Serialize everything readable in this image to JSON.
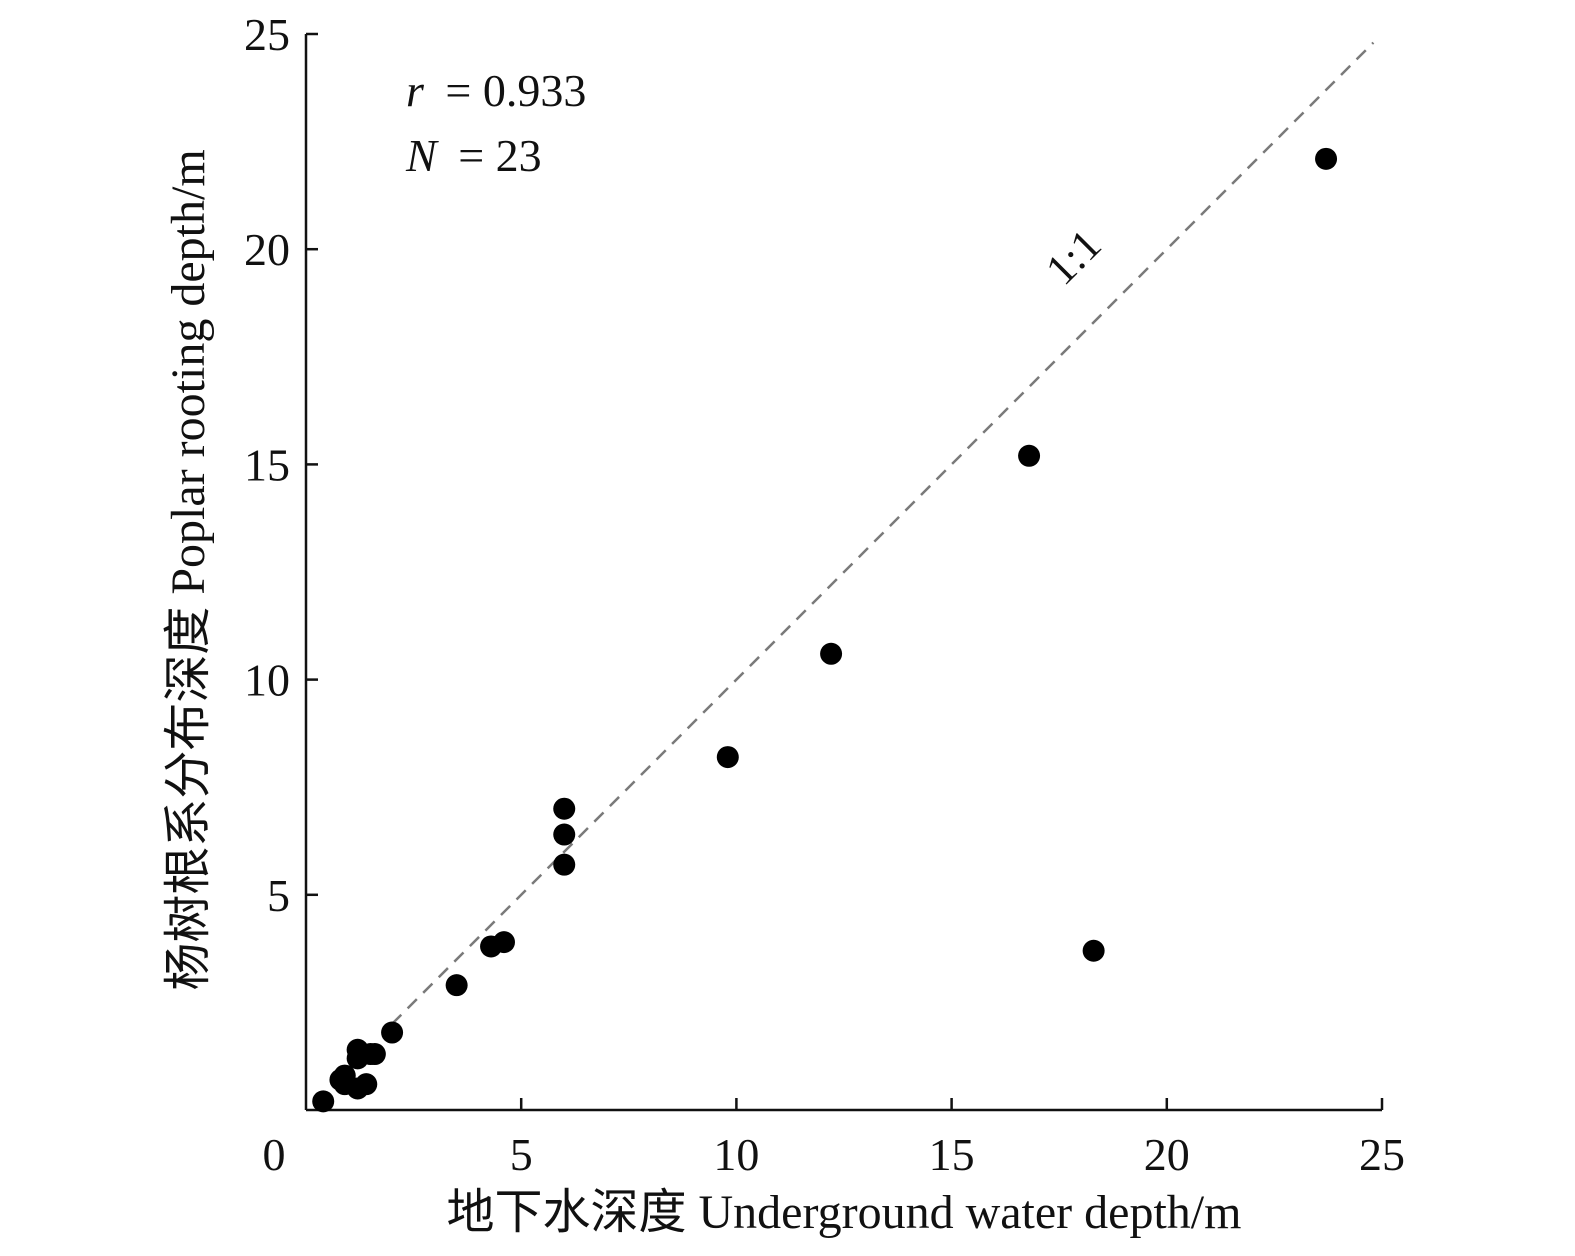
{
  "chart_data": {
    "type": "scatter",
    "xlabel": "地下水深度 Underground water depth/m",
    "ylabel": "杨树根系分布深度 Poplar rooting depth/m",
    "xlim": [
      0,
      25
    ],
    "ylim": [
      0,
      25
    ],
    "x_ticks": [
      0,
      5,
      10,
      15,
      20,
      25
    ],
    "y_ticks": [
      5,
      10,
      15,
      20,
      25
    ],
    "grid": false,
    "annotations": {
      "r_symbol": "r",
      "r_value": "= 0.933",
      "n_symbol": "N",
      "n_value": "= 23"
    },
    "reference_line": {
      "label": "1:1",
      "from": [
        2,
        2
      ],
      "to": [
        24.8,
        24.8
      ],
      "style": "dashed",
      "color": "#7a7a7a"
    },
    "point_color": "#000000",
    "points": [
      {
        "x": 0.4,
        "y": 0.2
      },
      {
        "x": 0.8,
        "y": 0.7
      },
      {
        "x": 0.9,
        "y": 0.6
      },
      {
        "x": 1.2,
        "y": 1.4
      },
      {
        "x": 1.2,
        "y": 1.2
      },
      {
        "x": 1.3,
        "y": 1.3
      },
      {
        "x": 1.5,
        "y": 1.3
      },
      {
        "x": 1.2,
        "y": 0.5
      },
      {
        "x": 1.4,
        "y": 0.6
      },
      {
        "x": 2.0,
        "y": 1.8
      },
      {
        "x": 3.5,
        "y": 2.9
      },
      {
        "x": 4.3,
        "y": 3.8
      },
      {
        "x": 4.6,
        "y": 3.9
      },
      {
        "x": 6.0,
        "y": 7.0
      },
      {
        "x": 6.0,
        "y": 6.4
      },
      {
        "x": 6.0,
        "y": 5.7
      },
      {
        "x": 9.8,
        "y": 8.2
      },
      {
        "x": 12.2,
        "y": 10.6
      },
      {
        "x": 16.8,
        "y": 15.2
      },
      {
        "x": 18.3,
        "y": 3.7
      },
      {
        "x": 23.7,
        "y": 22.1
      },
      {
        "x": 1.6,
        "y": 1.3
      },
      {
        "x": 0.9,
        "y": 0.8
      }
    ]
  }
}
